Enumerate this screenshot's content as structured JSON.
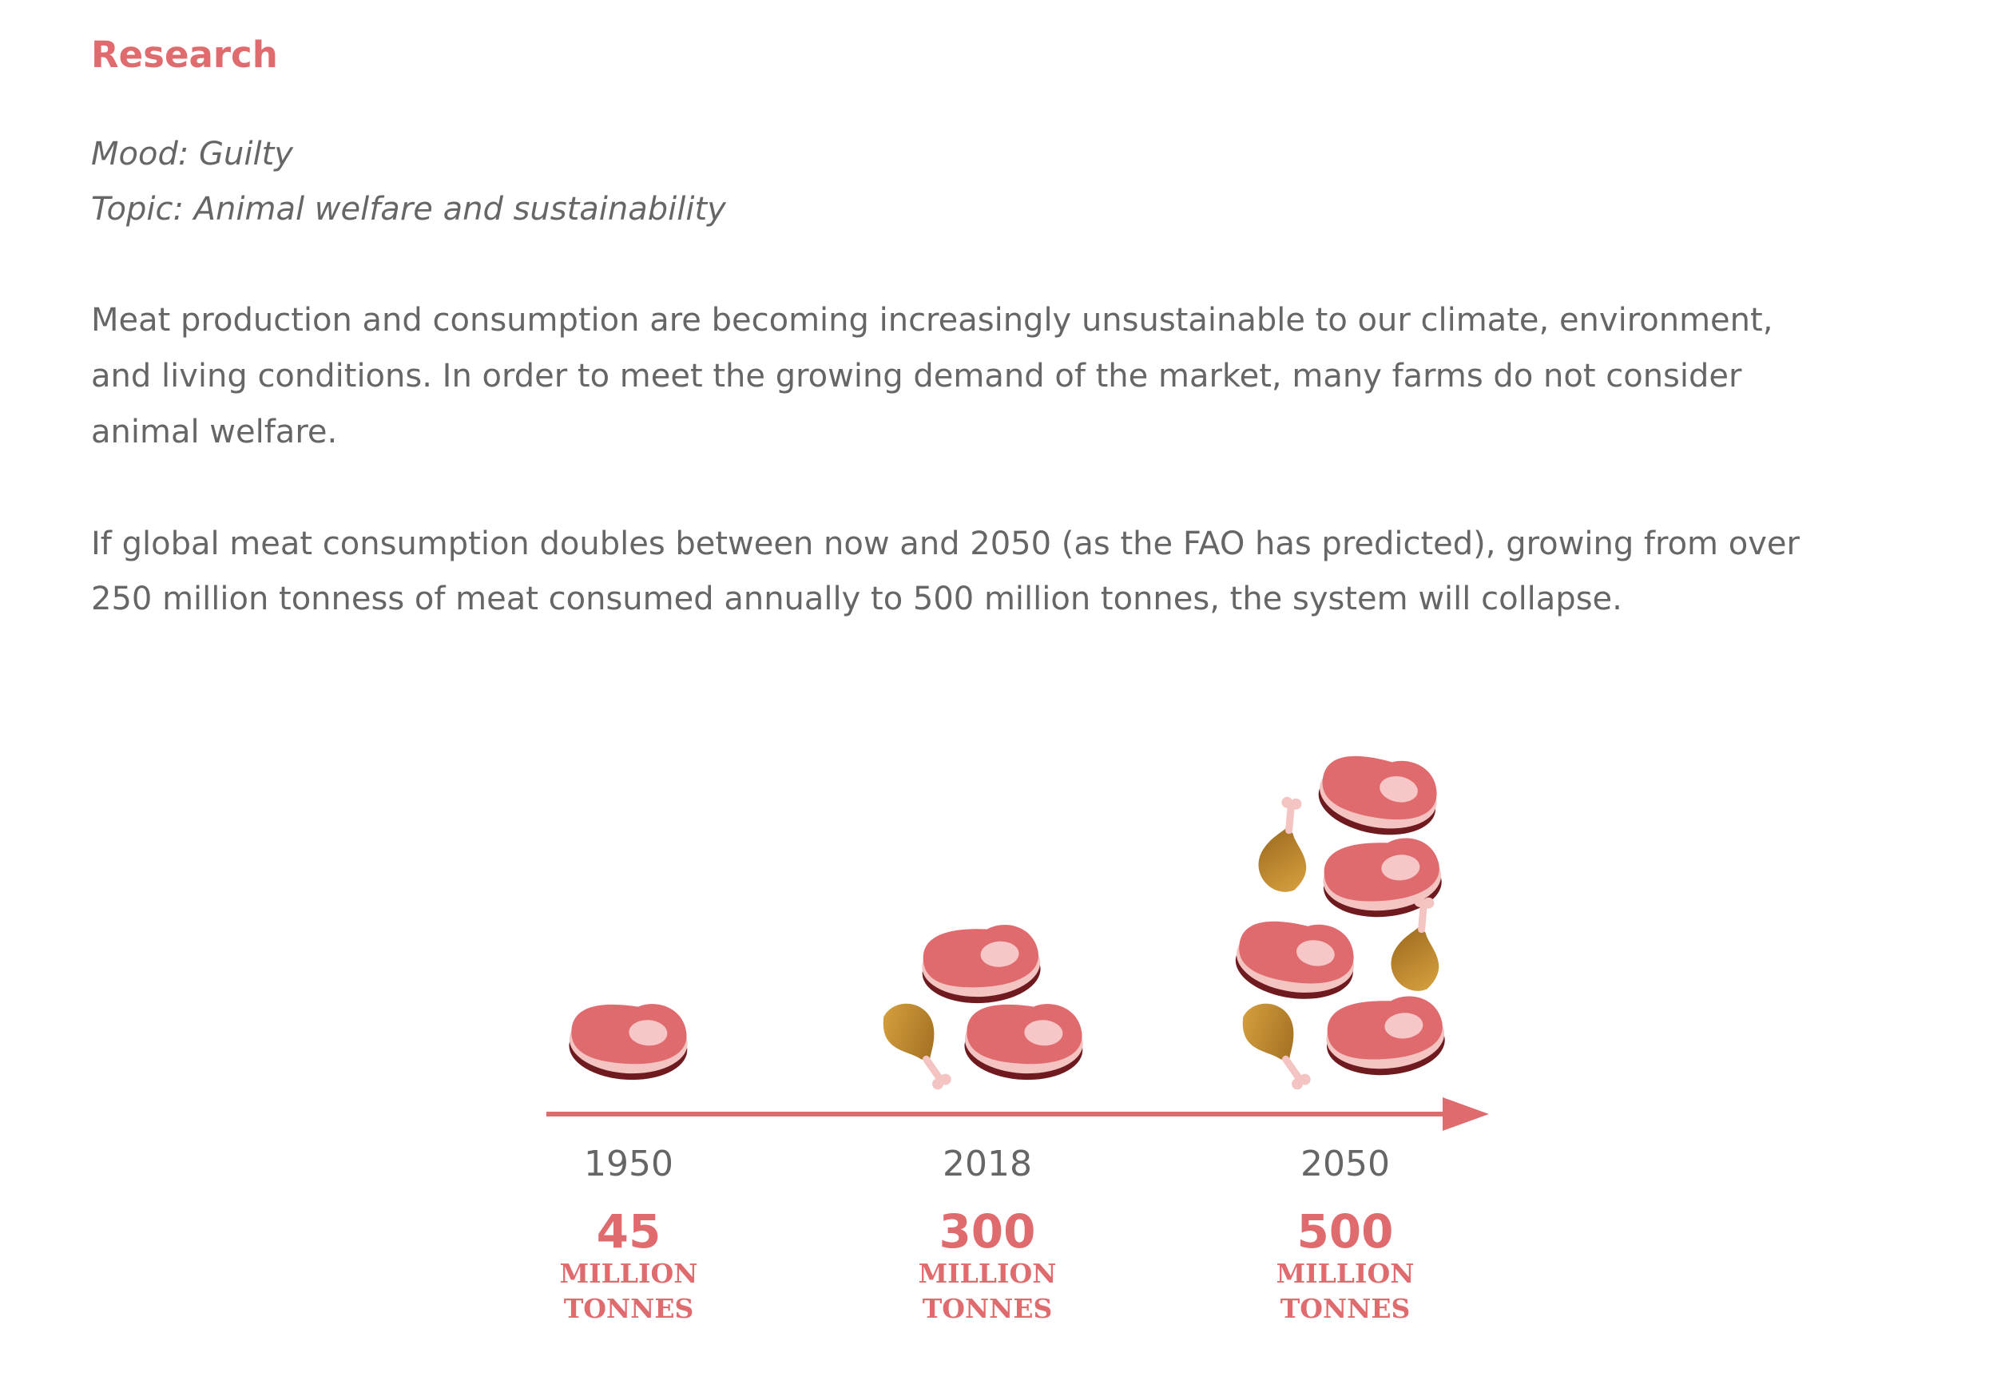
{
  "heading": "Research",
  "meta": [
    "Mood: Guilty",
    "Topic: Animal welfare and sustainability"
  ],
  "paragraphs": [
    [
      "Meat production and consumption are becoming increasingly unsustainable to our climate, environment,",
      "and living conditions. In order to meet the growing demand of the market, many farms do not consider",
      "animal welfare."
    ],
    [
      "If global meat consumption doubles between now and 2050 (as the FAO has predicted), growing from over",
      "250 million tonness of meat consumed annually to 500 million tonnes, the system will collapse."
    ]
  ],
  "timeline": {
    "items": [
      {
        "year": "1950",
        "amount": "45",
        "unit": [
          "MILLION",
          "TONNES"
        ]
      },
      {
        "year": "2018",
        "amount": "300",
        "unit": [
          "MILLION",
          "TONNES"
        ]
      },
      {
        "year": "2050",
        "amount": "500",
        "unit": [
          "MILLION",
          "TONNES"
        ]
      }
    ]
  }
}
